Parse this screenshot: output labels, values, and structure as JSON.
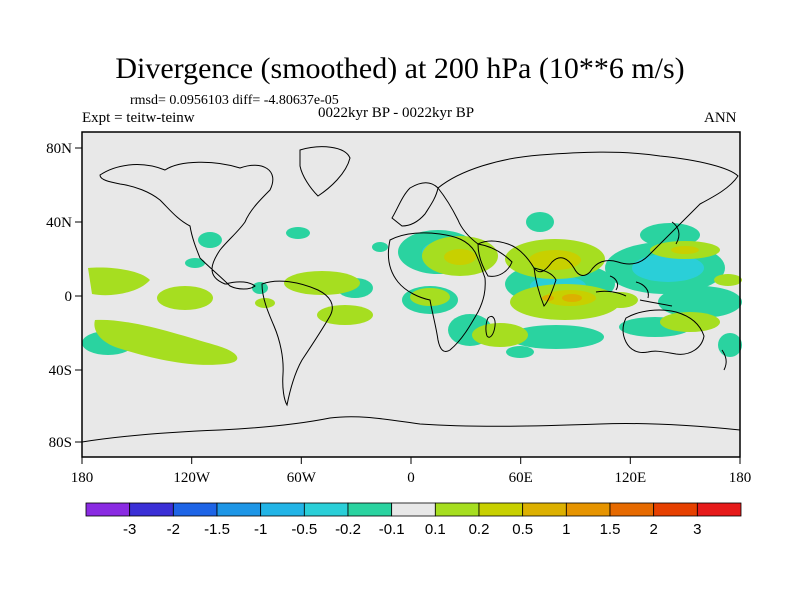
{
  "title": "Divergence (smoothed) at 200 hPa (10**6 m/s)",
  "stats": "rmsd= 0.0956103 diff= -4.80637e-05",
  "expt": "Expt = teitw-teinw",
  "period": "0022kyr BP - 0022kyr BP",
  "season": "ANN",
  "x_ticks": [
    "180",
    "120W",
    "60W",
    "0",
    "60E",
    "120E",
    "180"
  ],
  "y_ticks": [
    "80N",
    "40N",
    "0",
    "40S",
    "80S"
  ],
  "colorbar": {
    "labels": [
      "-3",
      "-2",
      "-1.5",
      "-1",
      "-0.5",
      "-0.2",
      "-0.1",
      "0.1",
      "0.2",
      "0.5",
      "1",
      "1.5",
      "2",
      "3"
    ],
    "colors": [
      "#8a2be2",
      "#3b2fd6",
      "#1e64e6",
      "#1e96e6",
      "#22b4e6",
      "#2acfd8",
      "#2ad3a0",
      "#e8e8e8",
      "#a6de20",
      "#c8d000",
      "#dcb000",
      "#e69400",
      "#e66a00",
      "#e64000",
      "#e61a1a"
    ]
  },
  "map": {
    "land_color": "#e8e8e8",
    "positive_colors": [
      "#a6de20",
      "#c8d000",
      "#dcb000"
    ],
    "negative_colors": [
      "#2ad3a0",
      "#2acfd8"
    ]
  }
}
